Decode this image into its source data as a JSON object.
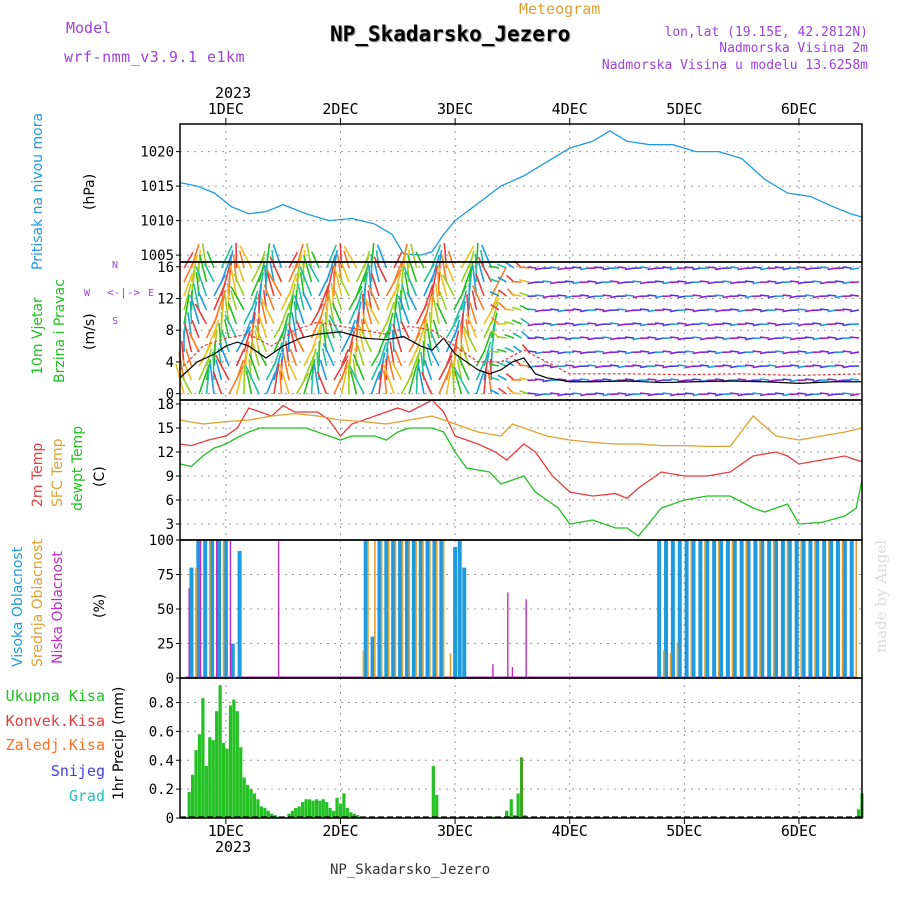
{
  "header": {
    "model_label": "Model",
    "model_name": "wrf-nmm_v3.9.1  e1km",
    "meteogram_label": "Meteogram",
    "station_title": "NP_Skadarsko_Jezero",
    "lonlat": "lon,lat (19.15E, 42.2812N)",
    "altitude": "Nadmorska Visina 2m",
    "model_altitude": "Nadmorska Visina u modelu 13.6258m"
  },
  "footer_station": "NP_Skadarsko_Jezero",
  "watermark": "made by Angel",
  "colors": {
    "pressure": "#1e9be0",
    "t2m": "#e83c3c",
    "sfc": "#e0a030",
    "dewpt": "#22c022",
    "high_cloud": "#1e9be0",
    "mid_cloud": "#e0a030",
    "low_cloud": "#c02cc0",
    "precip_total": "#22c022",
    "precip_conv": "#e83c3c",
    "model_text": "#a040e0"
  },
  "chart_data": [
    {
      "type": "line",
      "panel": "pressure",
      "x_labels": [
        "1DEC",
        "2DEC",
        "3DEC",
        "4DEC",
        "5DEC",
        "6DEC"
      ],
      "top_year": "2023",
      "bottom_year": "2023",
      "ylabel_text": "Pritisak na nivou mora",
      "unit": "(hPa)",
      "ylim": [
        1004,
        1024
      ],
      "yticks": [
        1005,
        1010,
        1015,
        1020
      ],
      "xlim": [
        0.6,
        6.55
      ],
      "series": [
        {
          "x": [
            0.6,
            0.75,
            0.9,
            1.05,
            1.2,
            1.35,
            1.5,
            1.7,
            1.9,
            2.1,
            2.3,
            2.45,
            2.55,
            2.7,
            2.8,
            2.9,
            3.0,
            3.2,
            3.4,
            3.6,
            3.8,
            4.0,
            4.2,
            4.35,
            4.5,
            4.7,
            4.9,
            5.1,
            5.3,
            5.5,
            5.7,
            5.9,
            6.1,
            6.3,
            6.45,
            6.55
          ],
          "y": [
            1015.5,
            1015,
            1014,
            1012,
            1011,
            1011.3,
            1012.3,
            1011,
            1010,
            1010.3,
            1009.5,
            1008,
            1005.2,
            1005,
            1005.5,
            1008,
            1010,
            1012.5,
            1015,
            1016.5,
            1018.5,
            1020.5,
            1021.5,
            1023,
            1021.5,
            1021,
            1021,
            1020,
            1020,
            1019,
            1016,
            1014,
            1013.5,
            1012,
            1011,
            1010.5
          ]
        }
      ]
    },
    {
      "type": "line",
      "panel": "wind",
      "ylabel_text": [
        "10m Vjetar",
        "Brzina i Pravac"
      ],
      "unit": "(m/s)",
      "direction_legend": [
        "W",
        "S",
        "E",
        "N"
      ],
      "ylim": [
        -0.8,
        16.6
      ],
      "yticks": [
        0,
        4,
        8,
        12,
        16
      ],
      "xlim": [
        0.6,
        6.55
      ],
      "series": [
        {
          "name": "speed",
          "x": [
            0.6,
            0.75,
            0.9,
            1.0,
            1.1,
            1.2,
            1.35,
            1.5,
            1.65,
            1.8,
            2.0,
            2.2,
            2.4,
            2.55,
            2.7,
            2.8,
            2.9,
            3.0,
            3.1,
            3.2,
            3.3,
            3.4,
            3.5,
            3.6,
            3.7,
            3.8,
            4.0,
            4.2,
            4.5,
            4.8,
            5.1,
            5.4,
            5.7,
            6.0,
            6.3,
            6.55
          ],
          "y": [
            2,
            4,
            5,
            6,
            6.5,
            6,
            4.5,
            6,
            7,
            7.5,
            7.8,
            7,
            6.8,
            7.2,
            6,
            5.5,
            7,
            5,
            4,
            3,
            2.5,
            3,
            4,
            4.5,
            2.5,
            2,
            1.5,
            1.5,
            1.6,
            1.4,
            1.5,
            1.6,
            1.5,
            1.3,
            1.5,
            1.5
          ]
        },
        {
          "name": "gust",
          "x": [
            0.6,
            0.8,
            1.0,
            1.2,
            1.4,
            1.6,
            1.8,
            2.0,
            2.2,
            2.4,
            2.6,
            2.8,
            3.0,
            3.2,
            3.4,
            3.6,
            3.8,
            4.0,
            4.5,
            5.0,
            5.5,
            6.0,
            6.55
          ],
          "y": [
            3,
            6,
            7,
            7.5,
            6,
            8,
            9,
            8.5,
            8,
            7.5,
            8.5,
            8,
            6,
            4,
            4,
            5.5,
            4,
            2.5,
            2.5,
            2.4,
            2.5,
            2.3,
            2.5
          ]
        }
      ]
    },
    {
      "type": "line",
      "panel": "temperature",
      "ylabel_text": [
        "2m Temp",
        "SFC Temp",
        "dewpt Temp"
      ],
      "unit": "(C)",
      "ylim": [
        1,
        18.5
      ],
      "yticks": [
        3,
        6,
        9,
        12,
        15,
        18
      ],
      "xlim": [
        0.6,
        6.55
      ],
      "series": [
        {
          "name": "2m Temp",
          "x": [
            0.6,
            0.7,
            0.85,
            1.0,
            1.1,
            1.2,
            1.3,
            1.4,
            1.5,
            1.6,
            1.8,
            1.9,
            2.0,
            2.1,
            2.3,
            2.5,
            2.6,
            2.8,
            2.9,
            3.0,
            3.2,
            3.35,
            3.45,
            3.6,
            3.7,
            3.85,
            4.0,
            4.2,
            4.4,
            4.5,
            4.6,
            4.8,
            5.0,
            5.2,
            5.4,
            5.6,
            5.8,
            5.9,
            6.0,
            6.2,
            6.4,
            6.5,
            6.55
          ],
          "y": [
            13,
            12.8,
            13.5,
            14,
            15,
            17.5,
            17,
            16.5,
            17.8,
            17,
            17,
            16,
            14,
            15.5,
            16.5,
            17.5,
            17,
            18.5,
            17,
            14,
            13,
            12,
            11,
            13,
            12,
            9,
            7,
            6.5,
            6.8,
            6.2,
            7.5,
            9.5,
            9,
            9,
            9.5,
            11.5,
            12,
            11.5,
            10.5,
            11,
            11.5,
            11,
            10.8
          ]
        },
        {
          "name": "SFC Temp",
          "x": [
            0.6,
            0.8,
            1.0,
            1.2,
            1.4,
            1.6,
            1.8,
            2.0,
            2.2,
            2.4,
            2.6,
            2.8,
            2.9,
            3.0,
            3.2,
            3.4,
            3.5,
            3.6,
            3.8,
            4.0,
            4.2,
            4.4,
            4.6,
            4.8,
            5.0,
            5.2,
            5.4,
            5.6,
            5.8,
            6.0,
            6.2,
            6.4,
            6.55
          ],
          "y": [
            16,
            15.5,
            15.8,
            16,
            16.5,
            16.8,
            16.5,
            16,
            15.8,
            15.5,
            16,
            16.5,
            16,
            15.5,
            14.5,
            14,
            15.5,
            15,
            14,
            13.5,
            13.2,
            13,
            13,
            12.8,
            12.8,
            12.7,
            12.7,
            16.5,
            14,
            13.5,
            14,
            14.5,
            15
          ]
        },
        {
          "name": "dewpt Temp",
          "x": [
            0.6,
            0.7,
            0.8,
            0.9,
            1.0,
            1.1,
            1.2,
            1.3,
            1.5,
            1.7,
            1.9,
            2.0,
            2.1,
            2.3,
            2.4,
            2.5,
            2.6,
            2.8,
            2.9,
            3.0,
            3.1,
            3.3,
            3.4,
            3.6,
            3.7,
            3.8,
            3.9,
            4.0,
            4.2,
            4.4,
            4.5,
            4.6,
            4.8,
            5.0,
            5.2,
            5.4,
            5.6,
            5.7,
            5.9,
            6.0,
            6.2,
            6.4,
            6.5,
            6.55
          ],
          "y": [
            10.5,
            10.2,
            11.5,
            12.5,
            13,
            13.8,
            14.5,
            15,
            15,
            15,
            14,
            13.5,
            14,
            14,
            13.5,
            14.5,
            15,
            15,
            14.5,
            12,
            10,
            9.5,
            8,
            9,
            7,
            6,
            5,
            3,
            3.5,
            2.5,
            2.5,
            1.5,
            5,
            6,
            6.5,
            6.5,
            5,
            4.5,
            5.5,
            3,
            3.2,
            4,
            5,
            8.5
          ]
        }
      ]
    },
    {
      "type": "bar",
      "panel": "cloud",
      "ylabel_text": [
        "Visoka Oblacnost",
        "Srednja Oblacnost",
        "Niska Oblacnost"
      ],
      "unit": "(%)",
      "ylim": [
        0,
        100
      ],
      "yticks": [
        0,
        25,
        50,
        75,
        100
      ],
      "xlim": [
        0.6,
        6.55
      ],
      "series": [
        {
          "name": "Visoka Oblacnost",
          "x": [
            0.7,
            0.76,
            0.82,
            0.88,
            0.94,
            1.0,
            1.06,
            1.12,
            2.22,
            2.28,
            2.34,
            2.4,
            2.46,
            2.52,
            2.58,
            2.64,
            2.7,
            2.76,
            2.82,
            2.88,
            3.0,
            3.04,
            3.08,
            4.78,
            4.84,
            4.9,
            4.96,
            5.02,
            5.08,
            5.14,
            5.2,
            5.26,
            5.32,
            5.38,
            5.44,
            5.5,
            5.56,
            5.62,
            5.68,
            5.74,
            5.8,
            5.86,
            5.92,
            5.98,
            6.04,
            6.1,
            6.16,
            6.22,
            6.28,
            6.34,
            6.4,
            6.46
          ],
          "y": [
            80,
            100,
            100,
            100,
            100,
            100,
            25,
            92,
            100,
            30,
            100,
            100,
            100,
            100,
            100,
            100,
            100,
            100,
            100,
            100,
            95,
            100,
            80,
            100,
            100,
            100,
            100,
            100,
            100,
            100,
            100,
            100,
            100,
            100,
            100,
            100,
            100,
            100,
            100,
            100,
            100,
            100,
            100,
            100,
            100,
            100,
            100,
            100,
            100,
            100,
            100,
            100
          ]
        },
        {
          "name": "Srednja Oblacnost",
          "x": [
            0.74,
            0.86,
            0.98,
            2.2,
            2.24,
            2.3,
            2.36,
            2.42,
            2.48,
            2.54,
            2.6,
            2.66,
            2.72,
            2.78,
            2.84,
            2.9,
            2.96,
            4.82,
            4.88,
            4.94,
            5.06,
            5.18,
            5.3,
            5.42,
            5.54,
            5.66,
            5.78,
            5.9,
            6.02,
            6.14,
            6.26,
            6.38,
            6.5
          ],
          "y": [
            80,
            100,
            100,
            20,
            100,
            100,
            100,
            100,
            100,
            100,
            100,
            100,
            100,
            100,
            100,
            100,
            18,
            20,
            18,
            25,
            100,
            100,
            100,
            100,
            100,
            100,
            100,
            100,
            100,
            100,
            100,
            100,
            100
          ]
        },
        {
          "name": "Niska Oblacnost",
          "x": [
            0.68,
            0.78,
            0.92,
            1.04,
            1.46,
            3.33,
            3.46,
            3.5,
            3.62
          ],
          "y": [
            65,
            100,
            100,
            100,
            100,
            10,
            62,
            8,
            57
          ]
        }
      ]
    },
    {
      "type": "bar",
      "panel": "precip",
      "legend": [
        "Ukupna Kisa",
        "Konvek.Kisa",
        "Zaledj.Kisa",
        "Snijeg",
        "Grad"
      ],
      "ylabel": "1hr Precip (mm)",
      "ylim": [
        0,
        0.97
      ],
      "yticks": [
        0,
        0.2,
        0.4,
        0.6,
        0.8
      ],
      "xlim": [
        0.6,
        6.55
      ],
      "series": [
        {
          "name": "Ukupna Kisa",
          "x": [
            0.68,
            0.71,
            0.74,
            0.77,
            0.8,
            0.83,
            0.86,
            0.89,
            0.92,
            0.95,
            0.98,
            1.01,
            1.04,
            1.07,
            1.1,
            1.13,
            1.16,
            1.19,
            1.22,
            1.25,
            1.28,
            1.31,
            1.34,
            1.37,
            1.4,
            1.43,
            1.46,
            1.55,
            1.58,
            1.61,
            1.64,
            1.67,
            1.7,
            1.73,
            1.76,
            1.79,
            1.82,
            1.85,
            1.88,
            1.91,
            1.94,
            1.97,
            2.0,
            2.03,
            2.06,
            2.09,
            2.12,
            2.15,
            2.18,
            2.81,
            2.84,
            3.34,
            3.45,
            3.49,
            3.52,
            3.55,
            3.58,
            3.61,
            6.52,
            6.55
          ],
          "y": [
            0.18,
            0.3,
            0.47,
            0.58,
            0.83,
            0.36,
            0.56,
            0.54,
            0.74,
            0.92,
            0.52,
            0.48,
            0.78,
            0.82,
            0.74,
            0.49,
            0.28,
            0.23,
            0.2,
            0.17,
            0.13,
            0.08,
            0.07,
            0.05,
            0.03,
            0.02,
            0.01,
            0.03,
            0.05,
            0.07,
            0.08,
            0.11,
            0.13,
            0.13,
            0.12,
            0.13,
            0.12,
            0.13,
            0.11,
            0.07,
            0.05,
            0.14,
            0.1,
            0.17,
            0.07,
            0.04,
            0.03,
            0.02,
            0.01,
            0.36,
            0.16,
            0.01,
            0.05,
            0.13,
            0.02,
            0.17,
            0.42,
            0.02,
            0.06,
            0.17
          ]
        },
        {
          "name": "Konvek.Kisa",
          "x": [
            3.58
          ],
          "y": [
            0.42
          ]
        }
      ]
    }
  ]
}
